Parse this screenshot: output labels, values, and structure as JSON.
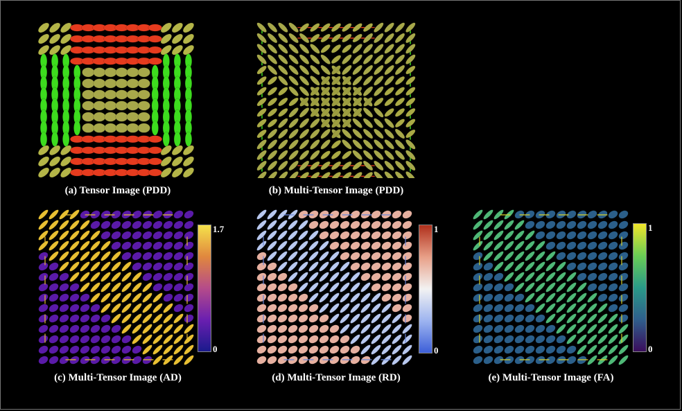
{
  "panels": [
    {
      "id": "a",
      "caption": "(a) Tensor Image (PDD)"
    },
    {
      "id": "b",
      "caption": "(b) Multi-Tensor Image (PDD)"
    },
    {
      "id": "c",
      "caption": "(c) Multi-Tensor Image (AD)",
      "colorbar": {
        "max": "1.7",
        "min": "0",
        "colors": [
          "#1a1a8c",
          "#6a1fb0",
          "#b54b8a",
          "#e0873e",
          "#f5e24b"
        ]
      }
    },
    {
      "id": "d",
      "caption": "(d) Multi-Tensor Image (RD)",
      "colorbar": {
        "max": "1",
        "min": "0",
        "colors": [
          "#3d5fd8",
          "#9db4f0",
          "#f2f2f2",
          "#e8a088",
          "#b0301c"
        ]
      }
    },
    {
      "id": "e",
      "caption": "(e) Multi-Tensor Image (FA)",
      "colorbar": {
        "max": "1",
        "min": "0",
        "colors": [
          "#3a0d5c",
          "#2f5f8c",
          "#2a9a88",
          "#6acd55",
          "#f0e52a"
        ]
      }
    }
  ],
  "colors": {
    "pdd_green": "#3ddc1e",
    "pdd_red": "#e63b1e",
    "pdd_olive": "#a7a84a",
    "ad_yellow": "#e8bf32",
    "ad_purple": "#5a1aa8",
    "rd_light": "#b8c8ef",
    "rd_peach": "#e6b0a0",
    "rd_blue": "#6a86d8",
    "fa_green": "#4fb877",
    "fa_blue": "#2b5f8a",
    "fa_yellow": "#d8d22a"
  }
}
